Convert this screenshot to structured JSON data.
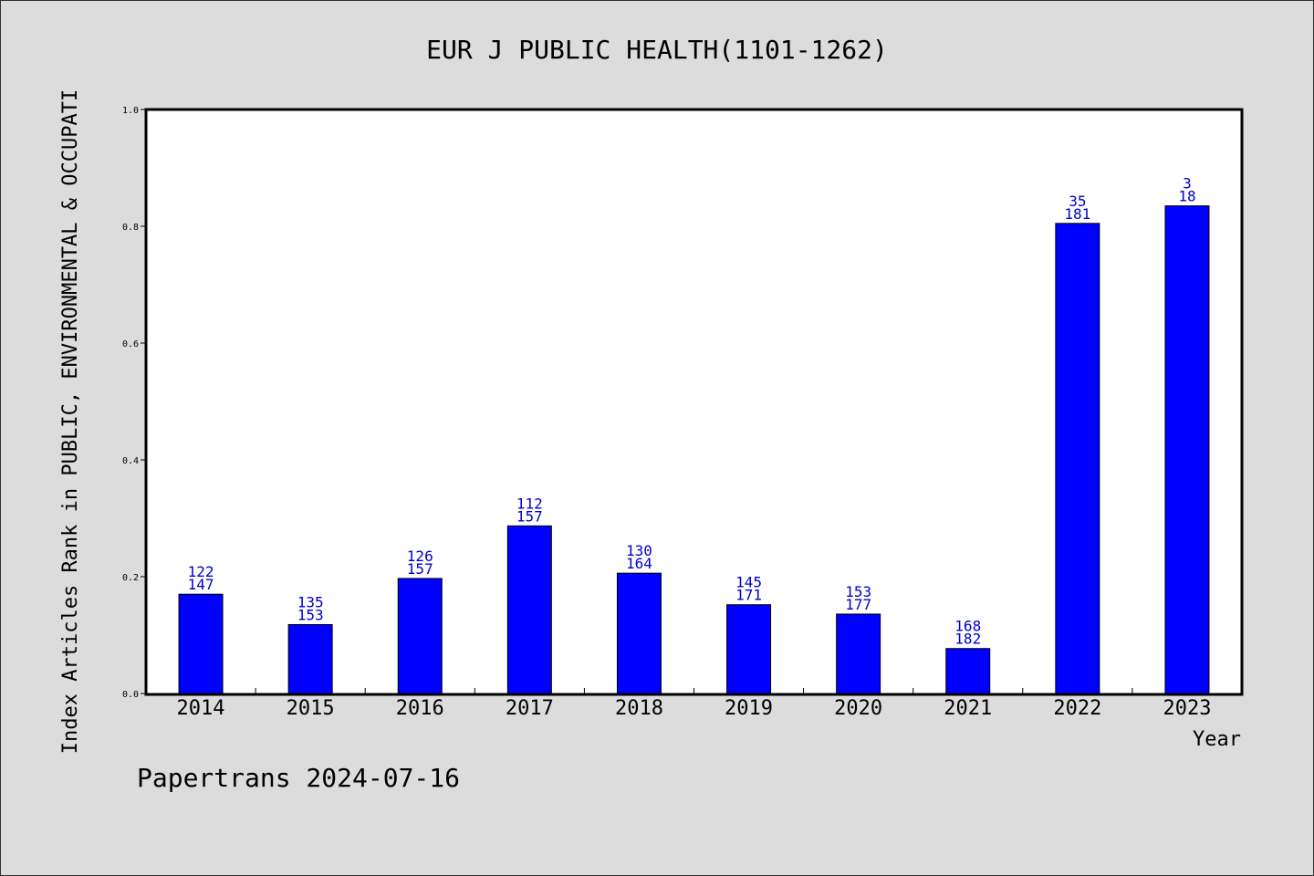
{
  "chart_data": {
    "type": "bar",
    "title": "EUR J PUBLIC HEALTH(1101-1262)",
    "xlabel": "Year",
    "ylabel": "Index Articles Rank in PUBLIC, ENVIRONMENTAL & OCCUPATI",
    "categories": [
      "2014",
      "2015",
      "2016",
      "2017",
      "2018",
      "2019",
      "2020",
      "2021",
      "2022",
      "2023"
    ],
    "values": [
      0.17,
      0.118,
      0.197,
      0.287,
      0.206,
      0.152,
      0.136,
      0.077,
      0.805,
      0.835
    ],
    "rank_labels": [
      [
        "122",
        "147"
      ],
      [
        "135",
        "153"
      ],
      [
        "126",
        "157"
      ],
      [
        "112",
        "157"
      ],
      [
        "130",
        "164"
      ],
      [
        "145",
        "171"
      ],
      [
        "153",
        "177"
      ],
      [
        "168",
        "182"
      ],
      [
        "35",
        "181"
      ],
      [
        "3",
        "18"
      ]
    ],
    "ylim": [
      0,
      1.0
    ],
    "yticks": [
      "0.0",
      "0.2",
      "0.4",
      "0.6",
      "0.8",
      "1.0"
    ],
    "grid": false,
    "bar_color": "#0000ff",
    "label_color": "#0000cc"
  },
  "footer": "Papertrans 2024-07-16"
}
